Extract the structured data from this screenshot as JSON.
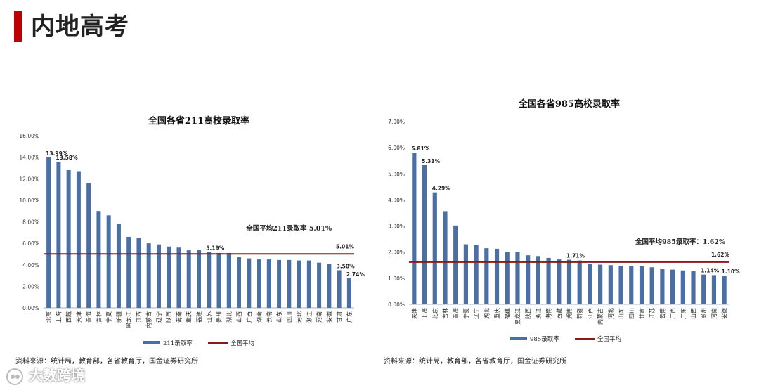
{
  "page": {
    "title": "内地高考",
    "accent_color": "#c00000"
  },
  "sources": {
    "left": "资料来源：统计局，教育部，各省教育厅，国金证券研究所",
    "right": "资料来源：统计局，教育部，各省教育厅，国金证券研究所"
  },
  "watermark": {
    "text": "大数跨境"
  },
  "chart_data": [
    {
      "type": "bar",
      "title": "全国各省211高校录取率",
      "categories": [
        "北京",
        "上海",
        "西藏",
        "天津",
        "青海",
        "吉林",
        "宁夏",
        "新疆",
        "黑龙江",
        "江西",
        "内蒙古",
        "辽宁",
        "陕西",
        "海南",
        "重庆",
        "福建",
        "江苏",
        "贵州",
        "湖北",
        "山西",
        "广西",
        "湖南",
        "云南",
        "山东",
        "四川",
        "河北",
        "浙江",
        "河南",
        "安徽",
        "甘肃",
        "广东"
      ],
      "series": [
        {
          "name": "211录取率",
          "values": [
            13.99,
            13.58,
            12.8,
            12.7,
            11.6,
            9.0,
            8.6,
            7.8,
            6.6,
            6.5,
            6.0,
            5.9,
            5.7,
            5.6,
            5.35,
            5.39,
            5.19,
            5.1,
            5.1,
            4.7,
            4.6,
            4.5,
            4.5,
            4.45,
            4.45,
            4.4,
            4.4,
            4.2,
            4.1,
            3.5,
            2.74
          ]
        }
      ],
      "average": {
        "name": "全国平均",
        "value": 5.01,
        "label": "全国平均211录取率 5.01%",
        "end_label": "5.01%"
      },
      "data_labels": [
        {
          "index": 0,
          "text": "13.99%"
        },
        {
          "index": 1,
          "text": "13.58%"
        },
        {
          "index": 16,
          "text": "5.19%"
        },
        {
          "index": 29,
          "text": "3.50%"
        },
        {
          "index": 30,
          "text": "2.74%"
        }
      ],
      "yticks": [
        "0.00%",
        "2.00%",
        "4.00%",
        "6.00%",
        "8.00%",
        "10.00%",
        "12.00%",
        "14.00%",
        "16.00%"
      ],
      "ylim": [
        0,
        16
      ],
      "legend": {
        "bar": "211录取率",
        "line": "全国平均"
      },
      "bar_color": "#4a6fa5",
      "avg_color": "#8b1a1a"
    },
    {
      "type": "bar",
      "title": "全国各省985高校录取率",
      "categories": [
        "天津",
        "上海",
        "北京",
        "吉林",
        "青海",
        "宁夏",
        "辽宁",
        "湖北",
        "重庆",
        "福建",
        "黑龙江",
        "陕西",
        "浙江",
        "海南",
        "西藏",
        "湖南",
        "新疆",
        "江西",
        "内蒙古",
        "河北",
        "山东",
        "四川",
        "甘肃",
        "江苏",
        "云南",
        "广西",
        "广东",
        "山西",
        "贵州",
        "河南",
        "安徽"
      ],
      "series": [
        {
          "name": "985录取率",
          "values": [
            5.81,
            5.33,
            4.29,
            3.57,
            3.02,
            2.3,
            2.28,
            2.15,
            2.13,
            2.0,
            2.0,
            1.88,
            1.85,
            1.78,
            1.72,
            1.71,
            1.68,
            1.55,
            1.52,
            1.5,
            1.48,
            1.47,
            1.46,
            1.42,
            1.37,
            1.33,
            1.3,
            1.28,
            1.14,
            1.12,
            1.1
          ]
        }
      ],
      "average": {
        "name": "全国平均",
        "value": 1.62,
        "label": "全国平均985录取率：1.62%",
        "end_label": "1.62%"
      },
      "data_labels": [
        {
          "index": 0,
          "text": "5.81%"
        },
        {
          "index": 1,
          "text": "5.33%"
        },
        {
          "index": 2,
          "text": "4.29%"
        },
        {
          "index": 15,
          "text": "1.71%"
        },
        {
          "index": 28,
          "text": "1.14%"
        },
        {
          "index": 30,
          "text": "1.10%"
        }
      ],
      "yticks": [
        "0.00%",
        "1.00%",
        "2.00%",
        "3.00%",
        "4.00%",
        "5.00%",
        "6.00%",
        "7.00%"
      ],
      "ylim": [
        0,
        7
      ],
      "legend": {
        "bar": "985录取率",
        "line": "全国平均"
      },
      "bar_color": "#4a6fa5",
      "avg_color": "#8b1a1a"
    }
  ]
}
